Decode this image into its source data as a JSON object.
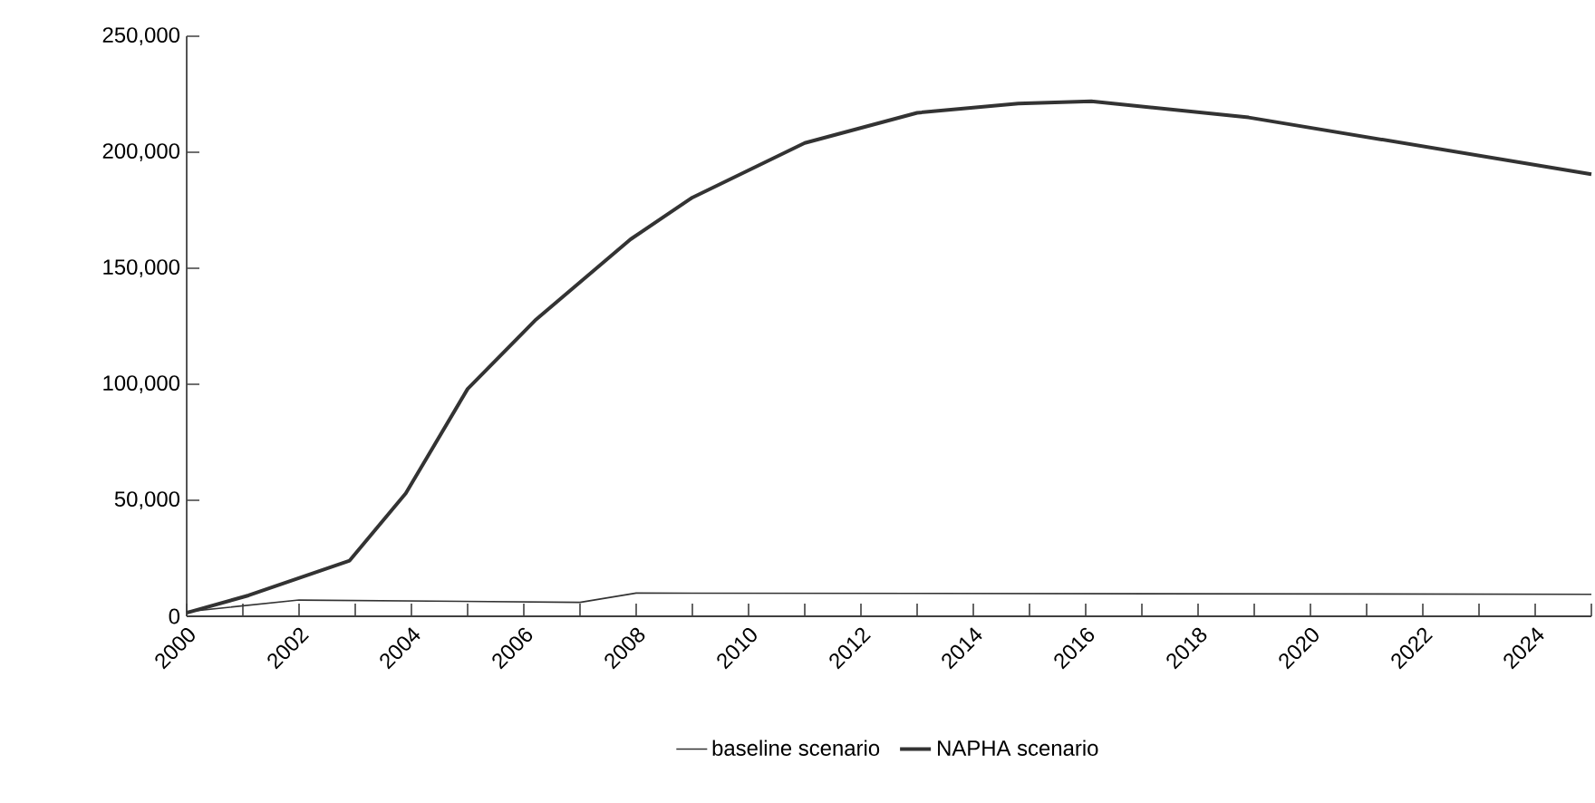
{
  "chart_data": {
    "type": "line",
    "xlim": [
      2000,
      2025
    ],
    "ylim": [
      0,
      250000
    ],
    "xticks": [
      2000,
      {
        "value": 2001,
        "label": null
      },
      2002,
      {
        "value": 2003,
        "label": null
      },
      2004,
      {
        "value": 2005,
        "label": null
      },
      2006,
      {
        "value": 2007,
        "label": null
      },
      2008,
      {
        "value": 2009,
        "label": null
      },
      2010,
      {
        "value": 2011,
        "label": null
      },
      2012,
      {
        "value": 2013,
        "label": null
      },
      2014,
      {
        "value": 2015,
        "label": null
      },
      2016,
      {
        "value": 2017,
        "label": null
      },
      2018,
      {
        "value": 2019,
        "label": null
      },
      2020,
      {
        "value": 2021,
        "label": null
      },
      2022,
      {
        "value": 2023,
        "label": null
      },
      2024,
      {
        "value": 2025,
        "label": null
      }
    ],
    "yticks": [
      {
        "value": 0,
        "label": "0"
      },
      {
        "value": 50000,
        "label": "50,000"
      },
      {
        "value": 100000,
        "label": "100,000"
      },
      {
        "value": 150000,
        "label": "150,000"
      },
      {
        "value": 200000,
        "label": "200,000"
      },
      {
        "value": 250000,
        "label": "250,000"
      }
    ],
    "legend": "bottom",
    "grid": false,
    "series": [
      {
        "name": "baseline scenario",
        "color": "#333333",
        "x": [
          2000,
          2002,
          2007,
          2008,
          2025
        ],
        "values": [
          2000,
          7000,
          6000,
          10000,
          9500
        ]
      },
      {
        "name": "NAPHA scenario",
        "color": "#333333",
        "x": [
          2000,
          2001.1,
          2002.9,
          2003.9,
          2005,
          2006.2,
          2007.9,
          2009,
          2011,
          2013,
          2014.8,
          2016.1,
          2018.9,
          2025
        ],
        "values": [
          1500,
          9000,
          24000,
          53000,
          98000,
          127500,
          162500,
          180500,
          204000,
          217000,
          221000,
          222000,
          215000,
          190500
        ]
      }
    ]
  }
}
